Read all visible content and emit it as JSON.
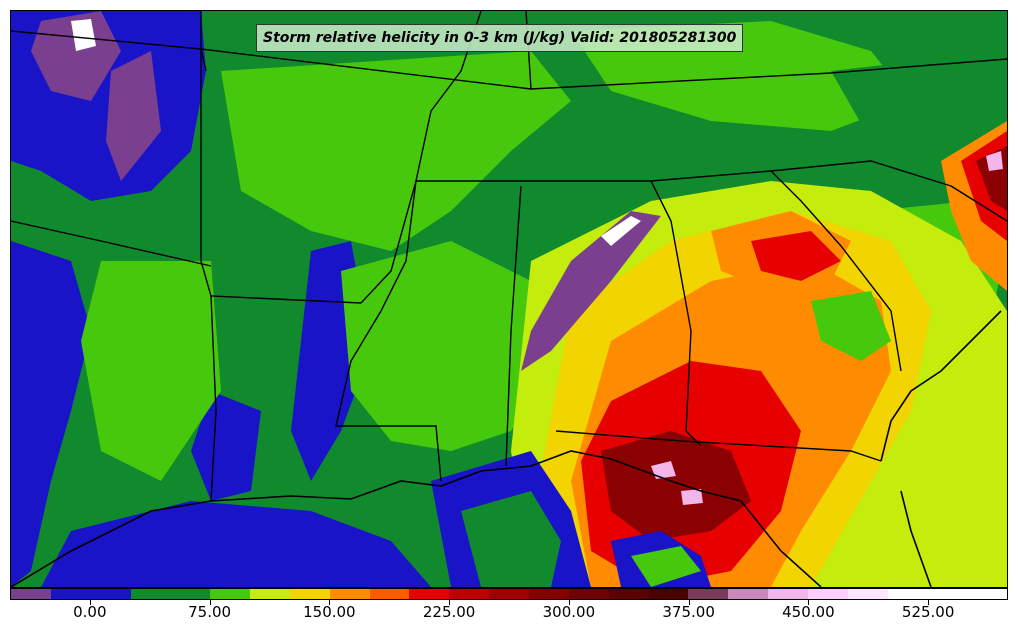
{
  "title": "Storm relative helicity in 0-3 km (J/kg) Valid: 201805281300",
  "colorbar": {
    "colors": [
      "#7b3f8f",
      "#1a14c8",
      "#1a14c8",
      "#11892d",
      "#11892d",
      "#46c80c",
      "#c4ec0c",
      "#f2d400",
      "#ff8c00",
      "#ff5a00",
      "#e60000",
      "#c00000",
      "#a00000",
      "#870000",
      "#6e0000",
      "#5a0000",
      "#4a0000",
      "#7a3a5a",
      "#cc88bb",
      "#f2b6ea",
      "#ffd0ff",
      "#ffe6ff",
      "#ffffff",
      "#ffffff",
      "#ffffff"
    ],
    "tick_labels": [
      "0.00",
      "75.00",
      "150.00",
      "225.00",
      "300.00",
      "375.00",
      "450.00",
      "525.00"
    ],
    "tick_values": [
      0,
      75,
      150,
      225,
      300,
      375,
      450,
      525
    ],
    "range": [
      -50,
      575
    ]
  },
  "field_colors": {
    "deep_blue": "#1a14c8",
    "dark_green": "#11892d",
    "green": "#46c80c",
    "yellow_green": "#c4ec0c",
    "yellow": "#f2d400",
    "orange": "#ff8c00",
    "red": "#e60000",
    "dark_red": "#8b0000",
    "purple": "#7b3f8f",
    "white": "#ffffff"
  }
}
